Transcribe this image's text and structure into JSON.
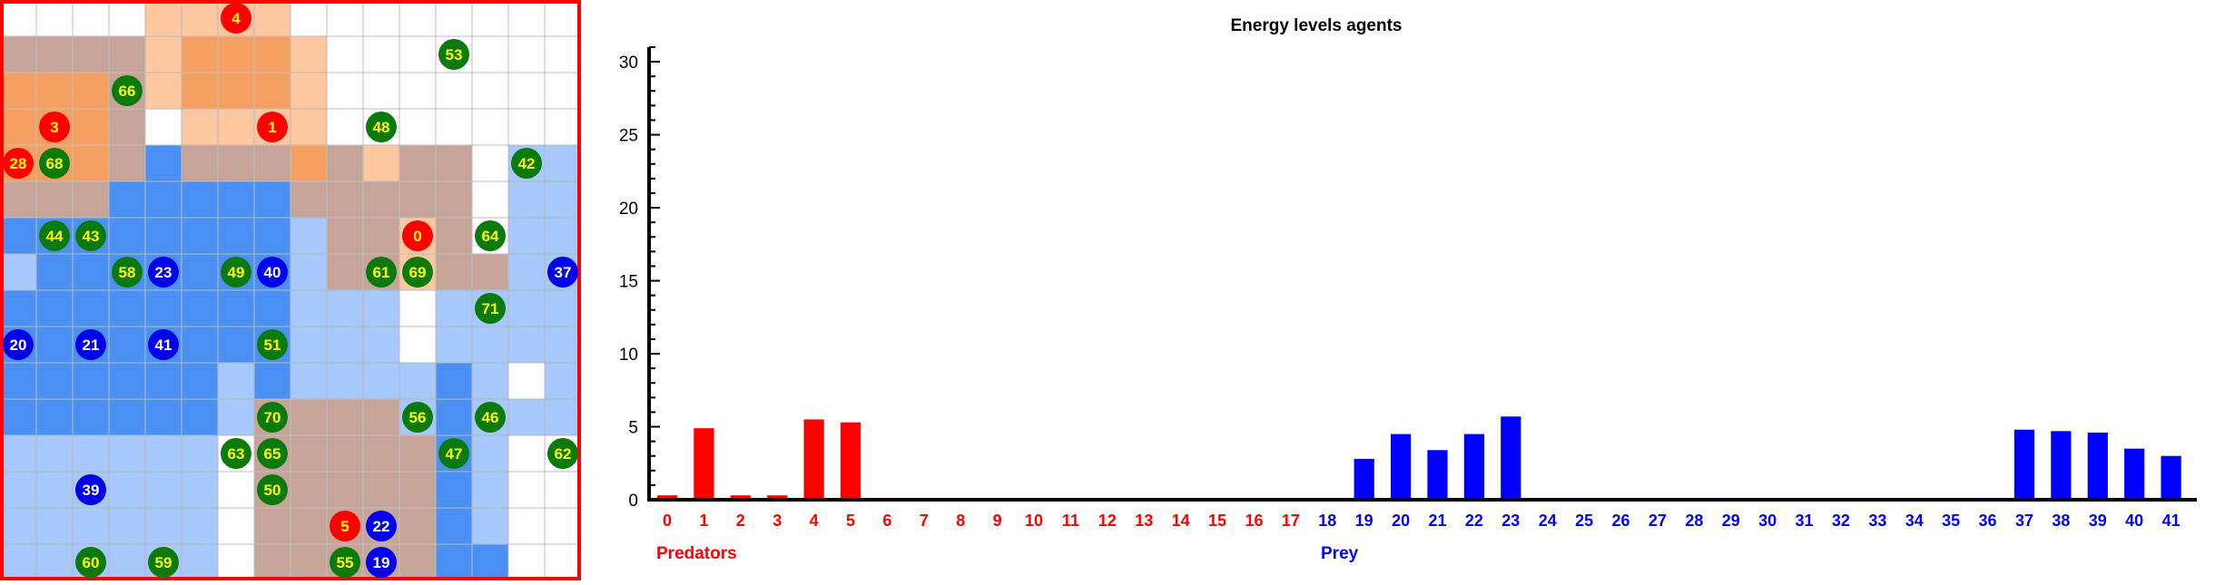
{
  "colors": {
    "predator": "#ff0000",
    "prey_agent": "#0000ee",
    "plant": "#0a7a0a",
    "agent_label": "#ffff00",
    "prey_label": "#0000ff",
    "border": "#ff0000",
    "predator_zone_strong": "#f5a060",
    "predator_zone_light": "#fdc8a0",
    "prey_zone_strong": "#4a90f5",
    "prey_zone_light": "#a6c8fb",
    "overlap_zone": "#c8a59a",
    "gridline": "#bbbbbb"
  },
  "grid": {
    "cols": 16,
    "rows": 16,
    "zones": [
      [
        0,
        0,
        0,
        0,
        2,
        2,
        2,
        2,
        0,
        0,
        0,
        0,
        0,
        0,
        0,
        0
      ],
      [
        5,
        5,
        5,
        5,
        2,
        1,
        1,
        1,
        2,
        0,
        0,
        0,
        0,
        0,
        0,
        0
      ],
      [
        1,
        1,
        1,
        5,
        2,
        1,
        1,
        1,
        2,
        0,
        0,
        0,
        0,
        0,
        0,
        0
      ],
      [
        1,
        1,
        1,
        5,
        0,
        2,
        2,
        2,
        2,
        0,
        0,
        0,
        0,
        0,
        0,
        0
      ],
      [
        1,
        1,
        1,
        5,
        3,
        5,
        5,
        5,
        1,
        5,
        2,
        5,
        5,
        0,
        4,
        4
      ],
      [
        5,
        5,
        5,
        3,
        3,
        3,
        3,
        3,
        5,
        5,
        5,
        5,
        5,
        0,
        4,
        4
      ],
      [
        3,
        3,
        3,
        3,
        3,
        3,
        3,
        3,
        4,
        5,
        5,
        2,
        5,
        0,
        4,
        4
      ],
      [
        4,
        3,
        3,
        3,
        3,
        3,
        3,
        3,
        4,
        5,
        5,
        2,
        5,
        5,
        4,
        4
      ],
      [
        3,
        3,
        3,
        3,
        3,
        3,
        3,
        3,
        4,
        4,
        4,
        0,
        4,
        4,
        4,
        4
      ],
      [
        3,
        3,
        3,
        3,
        3,
        3,
        3,
        3,
        4,
        4,
        4,
        0,
        4,
        4,
        4,
        4
      ],
      [
        3,
        3,
        3,
        3,
        3,
        3,
        4,
        3,
        4,
        4,
        4,
        4,
        3,
        4,
        0,
        4
      ],
      [
        3,
        3,
        3,
        3,
        3,
        3,
        4,
        5,
        5,
        5,
        5,
        4,
        3,
        4,
        4,
        4
      ],
      [
        4,
        4,
        4,
        4,
        4,
        4,
        0,
        5,
        5,
        5,
        5,
        5,
        3,
        4,
        0,
        0
      ],
      [
        4,
        4,
        4,
        4,
        4,
        4,
        0,
        5,
        5,
        5,
        5,
        5,
        3,
        4,
        0,
        0
      ],
      [
        4,
        4,
        4,
        4,
        4,
        4,
        0,
        5,
        5,
        5,
        5,
        5,
        3,
        4,
        0,
        0
      ],
      [
        4,
        4,
        4,
        4,
        4,
        4,
        0,
        5,
        5,
        5,
        5,
        5,
        3,
        3,
        0,
        0
      ]
    ],
    "agents": [
      {
        "label": "4",
        "kind": "predator",
        "col": 6,
        "row": 0
      },
      {
        "label": "53",
        "kind": "plant",
        "col": 12,
        "row": 1
      },
      {
        "label": "66",
        "kind": "plant",
        "col": 3,
        "row": 2
      },
      {
        "label": "3",
        "kind": "predator",
        "col": 1,
        "row": 3
      },
      {
        "label": "1",
        "kind": "predator",
        "col": 7,
        "row": 3
      },
      {
        "label": "48",
        "kind": "plant",
        "col": 10,
        "row": 3
      },
      {
        "label": "28",
        "kind": "predator",
        "col": 0,
        "row": 4
      },
      {
        "label": "68",
        "kind": "plant",
        "col": 1,
        "row": 4
      },
      {
        "label": "42",
        "kind": "plant",
        "col": 14,
        "row": 4
      },
      {
        "label": "44",
        "kind": "plant",
        "col": 1,
        "row": 6
      },
      {
        "label": "43",
        "kind": "plant",
        "col": 2,
        "row": 6
      },
      {
        "label": "0",
        "kind": "predator",
        "col": 11,
        "row": 6
      },
      {
        "label": "64",
        "kind": "plant",
        "col": 13,
        "row": 6
      },
      {
        "label": "58",
        "kind": "plant",
        "col": 3,
        "row": 7
      },
      {
        "label": "23",
        "kind": "prey",
        "col": 4,
        "row": 7
      },
      {
        "label": "49",
        "kind": "plant",
        "col": 6,
        "row": 7
      },
      {
        "label": "40",
        "kind": "prey",
        "col": 7,
        "row": 7
      },
      {
        "label": "61",
        "kind": "plant",
        "col": 10,
        "row": 7
      },
      {
        "label": "69",
        "kind": "plant",
        "col": 11,
        "row": 7
      },
      {
        "label": "37",
        "kind": "prey",
        "col": 15,
        "row": 7
      },
      {
        "label": "71",
        "kind": "plant",
        "col": 13,
        "row": 8
      },
      {
        "label": "20",
        "kind": "prey",
        "col": 0,
        "row": 9
      },
      {
        "label": "21",
        "kind": "prey",
        "col": 2,
        "row": 9
      },
      {
        "label": "41",
        "kind": "prey",
        "col": 4,
        "row": 9
      },
      {
        "label": "51",
        "kind": "plant",
        "col": 7,
        "row": 9
      },
      {
        "label": "70",
        "kind": "plant",
        "col": 7,
        "row": 11
      },
      {
        "label": "56",
        "kind": "plant",
        "col": 11,
        "row": 11
      },
      {
        "label": "46",
        "kind": "plant",
        "col": 13,
        "row": 11
      },
      {
        "label": "63",
        "kind": "plant",
        "col": 6,
        "row": 12
      },
      {
        "label": "65",
        "kind": "plant",
        "col": 7,
        "row": 12
      },
      {
        "label": "47",
        "kind": "plant",
        "col": 12,
        "row": 12
      },
      {
        "label": "62",
        "kind": "plant",
        "col": 15,
        "row": 12
      },
      {
        "label": "39",
        "kind": "prey",
        "col": 2,
        "row": 13
      },
      {
        "label": "50",
        "kind": "plant",
        "col": 7,
        "row": 13
      },
      {
        "label": "5",
        "kind": "predator",
        "col": 9,
        "row": 14
      },
      {
        "label": "22",
        "kind": "prey",
        "col": 10,
        "row": 14
      },
      {
        "label": "60",
        "kind": "plant",
        "col": 2,
        "row": 15
      },
      {
        "label": "59",
        "kind": "plant",
        "col": 4,
        "row": 15
      },
      {
        "label": "55",
        "kind": "plant",
        "col": 9,
        "row": 15
      },
      {
        "label": "19",
        "kind": "prey",
        "col": 10,
        "row": 15
      }
    ]
  },
  "chart_data": {
    "type": "bar",
    "title": "Energy levels agents",
    "ylim": [
      0,
      31
    ],
    "yticks": [
      "0",
      "5",
      "10",
      "15",
      "20",
      "25",
      "30"
    ],
    "categories": [
      "0",
      "1",
      "2",
      "3",
      "4",
      "5",
      "6",
      "7",
      "8",
      "9",
      "10",
      "11",
      "12",
      "13",
      "14",
      "15",
      "16",
      "17",
      "18",
      "19",
      "20",
      "21",
      "22",
      "23",
      "24",
      "25",
      "26",
      "27",
      "28",
      "29",
      "30",
      "31",
      "32",
      "33",
      "34",
      "35",
      "36",
      "37",
      "38",
      "39",
      "40",
      "41"
    ],
    "groups": [
      "predator",
      "predator",
      "predator",
      "predator",
      "predator",
      "predator",
      "predator",
      "predator",
      "predator",
      "predator",
      "predator",
      "predator",
      "predator",
      "predator",
      "predator",
      "predator",
      "predator",
      "predator",
      "prey",
      "prey",
      "prey",
      "prey",
      "prey",
      "prey",
      "prey",
      "prey",
      "prey",
      "prey",
      "prey",
      "prey",
      "prey",
      "prey",
      "prey",
      "prey",
      "prey",
      "prey",
      "prey",
      "prey",
      "prey",
      "prey",
      "prey",
      "prey"
    ],
    "values": [
      0.3,
      4.9,
      0.3,
      0.3,
      5.5,
      5.3,
      0,
      0,
      0,
      0,
      0,
      0,
      0,
      0,
      0,
      0,
      0,
      0,
      0,
      2.8,
      4.5,
      3.4,
      4.5,
      5.7,
      0,
      0,
      0,
      0,
      0,
      0,
      0,
      0,
      0,
      0,
      0,
      0,
      0,
      4.8,
      4.7,
      4.6,
      3.5,
      3.0
    ],
    "group_labels": {
      "predator": "Predators",
      "prey": "Prey"
    }
  }
}
